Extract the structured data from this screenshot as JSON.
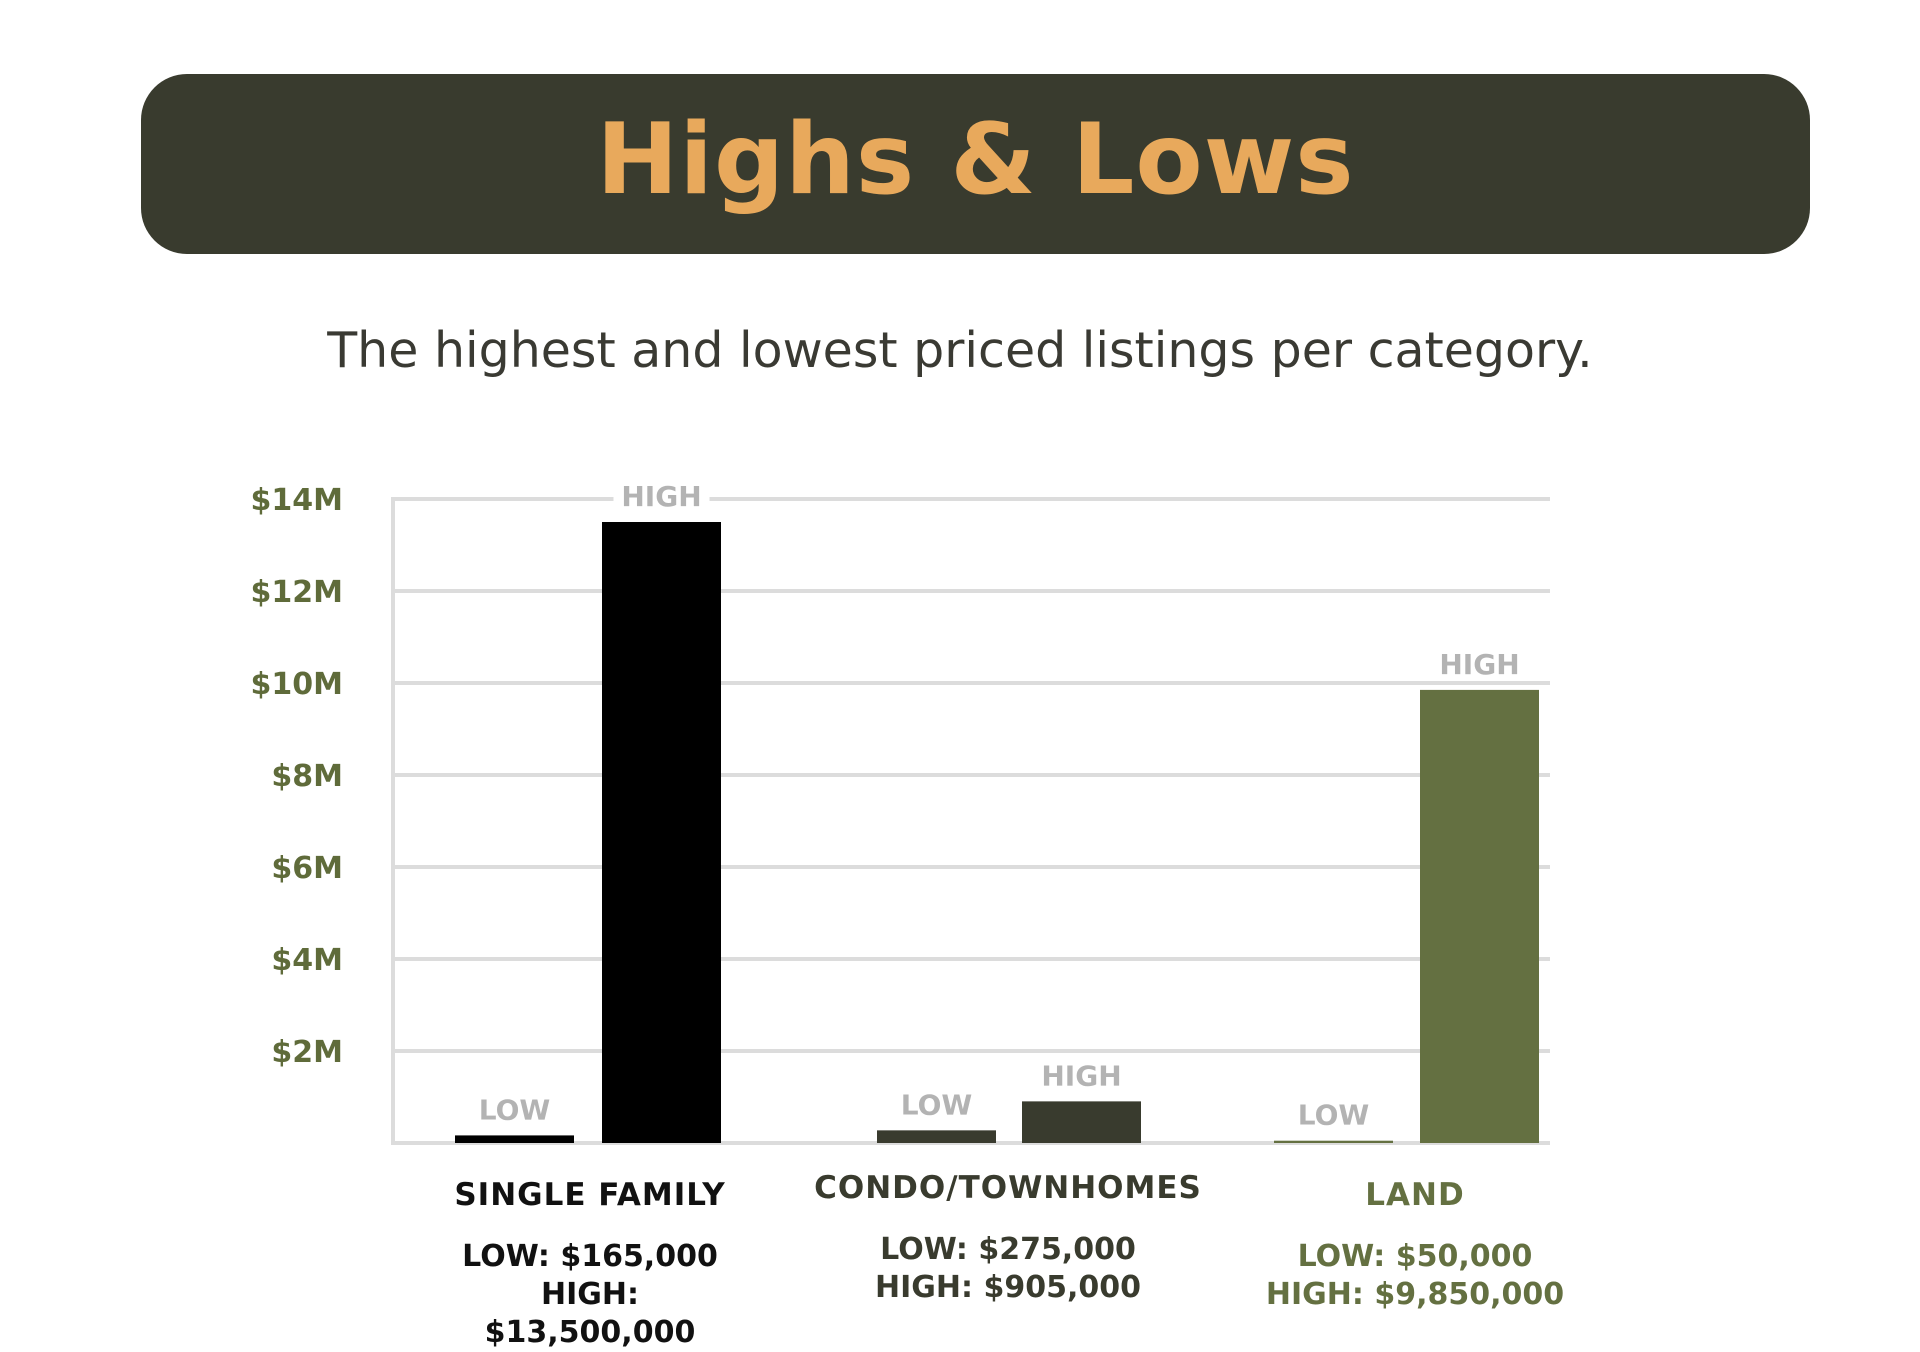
{
  "header": {
    "title": "Highs & Lows",
    "subtitle": "The highest and lowest priced listings per category."
  },
  "colors": {
    "banner_bg": "#393b2e",
    "title": "#e8a95c",
    "axis_label": "#5f6b3a",
    "bar_label": "#b3b3b3",
    "grid": "#dcdcdc",
    "single_family": "#000000",
    "condo": "#393b2e",
    "land": "#647041"
  },
  "chart_data": {
    "type": "bar",
    "title": "Highs & Lows",
    "subtitle": "The highest and lowest priced listings per category.",
    "xlabel": "",
    "ylabel": "",
    "ylim": [
      0,
      14000000
    ],
    "yticks": [
      2000000,
      4000000,
      6000000,
      8000000,
      10000000,
      12000000,
      14000000
    ],
    "ytick_labels": [
      "$2M",
      "$4M",
      "$6M",
      "$8M",
      "$10M",
      "$12M",
      "$14M"
    ],
    "grid": true,
    "legend": "none",
    "bar_low_label": "LOW",
    "bar_high_label": "HIGH",
    "categories": [
      {
        "name": "SINGLE FAMILY",
        "low": 165000,
        "high": 13500000,
        "low_text": "LOW: $165,000",
        "high_text": "HIGH: $13,500,000",
        "color": "#000000",
        "text_color": "#111111"
      },
      {
        "name": "CONDO/TOWNHOMES",
        "low": 275000,
        "high": 905000,
        "low_text": "LOW: $275,000",
        "high_text": "HIGH: $905,000",
        "color": "#393b2e",
        "text_color": "#393b2e"
      },
      {
        "name": "LAND",
        "low": 50000,
        "high": 9850000,
        "low_text": "LOW: $50,000",
        "high_text": "HIGH: $9,850,000",
        "color": "#647041",
        "text_color": "#647041"
      }
    ]
  }
}
